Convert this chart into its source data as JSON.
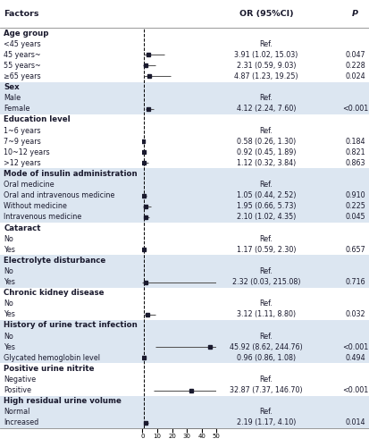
{
  "title_col1": "Factors",
  "title_col2": "OR (95%CI)",
  "title_col3": "P",
  "rows": [
    {
      "label": "Age group",
      "type": "header",
      "bg": "white"
    },
    {
      "label": "<45 years",
      "type": "ref_label",
      "or_text": "Ref.",
      "p_text": "",
      "or": null,
      "lo": null,
      "hi": null,
      "bg": "white"
    },
    {
      "label": "45 years~",
      "type": "data",
      "or_text": "3.91 (1.02, 15.03)",
      "p_text": "0.047",
      "or": 3.91,
      "lo": 1.02,
      "hi": 15.03,
      "bg": "white"
    },
    {
      "label": "55 years~",
      "type": "data",
      "or_text": "2.31 (0.59, 9.03)",
      "p_text": "0.228",
      "or": 2.31,
      "lo": 0.59,
      "hi": 9.03,
      "bg": "white"
    },
    {
      "label": "≥65 years",
      "type": "data",
      "or_text": "4.87 (1.23, 19.25)",
      "p_text": "0.024",
      "or": 4.87,
      "lo": 1.23,
      "hi": 19.25,
      "bg": "white"
    },
    {
      "label": "Sex",
      "type": "header",
      "bg": "#dce6f1"
    },
    {
      "label": "Male",
      "type": "ref_label",
      "or_text": "Ref.",
      "p_text": "",
      "or": null,
      "lo": null,
      "hi": null,
      "bg": "#dce6f1"
    },
    {
      "label": "Female",
      "type": "data",
      "or_text": "4.12 (2.24, 7.60)",
      "p_text": "<0.001",
      "or": 4.12,
      "lo": 2.24,
      "hi": 7.6,
      "bg": "#dce6f1"
    },
    {
      "label": "Education level",
      "type": "header",
      "bg": "white"
    },
    {
      "label": "1~6 years",
      "type": "ref_label",
      "or_text": "Ref.",
      "p_text": "",
      "or": null,
      "lo": null,
      "hi": null,
      "bg": "white"
    },
    {
      "label": "7~9 years",
      "type": "data",
      "or_text": "0.58 (0.26, 1.30)",
      "p_text": "0.184",
      "or": 0.58,
      "lo": 0.26,
      "hi": 1.3,
      "bg": "white"
    },
    {
      "label": "10~12 years",
      "type": "data",
      "or_text": "0.92 (0.45, 1.89)",
      "p_text": "0.821",
      "or": 0.92,
      "lo": 0.45,
      "hi": 1.89,
      "bg": "white"
    },
    {
      "label": ">12 years",
      "type": "data",
      "or_text": "1.12 (0.32, 3.84)",
      "p_text": "0.863",
      "or": 1.12,
      "lo": 0.32,
      "hi": 3.84,
      "bg": "white"
    },
    {
      "label": "Mode of insulin administration",
      "type": "header",
      "bg": "#dce6f1"
    },
    {
      "label": "Oral medicine",
      "type": "ref_label",
      "or_text": "Ref.",
      "p_text": "",
      "or": null,
      "lo": null,
      "hi": null,
      "bg": "#dce6f1"
    },
    {
      "label": "Oral and intravenous medicine",
      "type": "data",
      "or_text": "1.05 (0.44, 2.52)",
      "p_text": "0.910",
      "or": 1.05,
      "lo": 0.44,
      "hi": 2.52,
      "bg": "#dce6f1"
    },
    {
      "label": "Without medicine",
      "type": "data",
      "or_text": "1.95 (0.66, 5.73)",
      "p_text": "0.225",
      "or": 1.95,
      "lo": 0.66,
      "hi": 5.73,
      "bg": "#dce6f1"
    },
    {
      "label": "Intravenous medicine",
      "type": "data",
      "or_text": "2.10 (1.02, 4.35)",
      "p_text": "0.045",
      "or": 2.1,
      "lo": 1.02,
      "hi": 4.35,
      "bg": "#dce6f1"
    },
    {
      "label": "Cataract",
      "type": "header",
      "bg": "white"
    },
    {
      "label": "No",
      "type": "ref_label",
      "or_text": "Ref.",
      "p_text": "",
      "or": null,
      "lo": null,
      "hi": null,
      "bg": "white"
    },
    {
      "label": "Yes",
      "type": "data",
      "or_text": "1.17 (0.59, 2.30)",
      "p_text": "0.657",
      "or": 1.17,
      "lo": 0.59,
      "hi": 2.3,
      "bg": "white"
    },
    {
      "label": "Electrolyte disturbance",
      "type": "header",
      "bg": "#dce6f1"
    },
    {
      "label": "No",
      "type": "ref_label",
      "or_text": "Ref.",
      "p_text": "",
      "or": null,
      "lo": null,
      "hi": null,
      "bg": "#dce6f1"
    },
    {
      "label": "Yes",
      "type": "data",
      "or_text": "2.32 (0.03, 215.08)",
      "p_text": "0.716",
      "or": 2.32,
      "lo": 0.03,
      "hi": 215.08,
      "bg": "#dce6f1"
    },
    {
      "label": "Chronic kidney disease",
      "type": "header",
      "bg": "white"
    },
    {
      "label": "No",
      "type": "ref_label",
      "or_text": "Ref.",
      "p_text": "",
      "or": null,
      "lo": null,
      "hi": null,
      "bg": "white"
    },
    {
      "label": "Yes",
      "type": "data",
      "or_text": "3.12 (1.11, 8.80)",
      "p_text": "0.032",
      "or": 3.12,
      "lo": 1.11,
      "hi": 8.8,
      "bg": "white"
    },
    {
      "label": "History of urine tract infection",
      "type": "header",
      "bg": "#dce6f1"
    },
    {
      "label": "No",
      "type": "ref_label",
      "or_text": "Ref.",
      "p_text": "",
      "or": null,
      "lo": null,
      "hi": null,
      "bg": "#dce6f1"
    },
    {
      "label": "Yes",
      "type": "data",
      "or_text": "45.92 (8.62, 244.76)",
      "p_text": "<0.001",
      "or": 45.92,
      "lo": 8.62,
      "hi": 244.76,
      "bg": "#dce6f1"
    },
    {
      "label": "Glycated hemoglobin level",
      "type": "data",
      "or_text": "0.96 (0.86, 1.08)",
      "p_text": "0.494",
      "or": 0.96,
      "lo": 0.86,
      "hi": 1.08,
      "bg": "#dce6f1"
    },
    {
      "label": "Positive urine nitrite",
      "type": "header",
      "bg": "white"
    },
    {
      "label": "Negative",
      "type": "ref_label",
      "or_text": "Ref.",
      "p_text": "",
      "or": null,
      "lo": null,
      "hi": null,
      "bg": "white"
    },
    {
      "label": "Positive",
      "type": "data",
      "or_text": "32.87 (7.37, 146.70)",
      "p_text": "<0.001",
      "or": 32.87,
      "lo": 7.37,
      "hi": 146.7,
      "bg": "white"
    },
    {
      "label": "High residual urine volume",
      "type": "header",
      "bg": "#dce6f1"
    },
    {
      "label": "Normal",
      "type": "ref_label",
      "or_text": "Ref.",
      "p_text": "",
      "or": null,
      "lo": null,
      "hi": null,
      "bg": "#dce6f1"
    },
    {
      "label": "Increased",
      "type": "data",
      "or_text": "2.19 (1.17, 4.10)",
      "p_text": "0.014",
      "or": 2.19,
      "lo": 1.17,
      "hi": 4.1,
      "bg": "#dce6f1"
    }
  ],
  "xmin": 0,
  "xmax": 50,
  "xticks": [
    0,
    10,
    20,
    30,
    40,
    50
  ],
  "ref_line": 1,
  "header_bg": "#b8cce4",
  "alt_bg": "#dce6f1",
  "marker_color": "#1a1a2e",
  "ci_color": "#555555",
  "font_size": 5.8,
  "header_font_size": 6.2,
  "col_header_fontsize": 6.8
}
